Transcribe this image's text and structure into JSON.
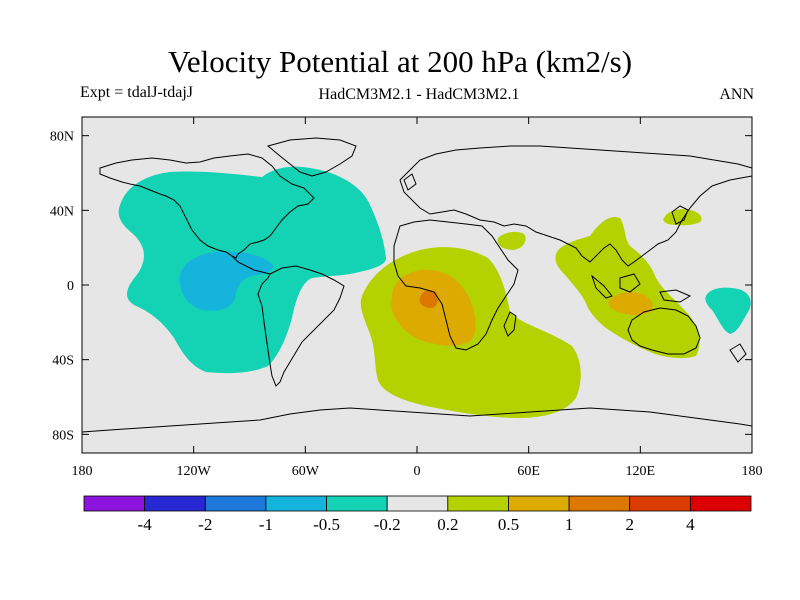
{
  "title": "Velocity Potential at 200 hPa (km2/s)",
  "experiment_label": "Expt = tdalJ-tdajJ",
  "model_label": "HadCM3M2.1 - HadCM3M2.1",
  "season_label": "ANN",
  "map": {
    "projection": "cylindrical equidistant",
    "lon_range": [
      -180,
      180
    ],
    "lat_range": [
      -90,
      90
    ],
    "lat_ticks": [
      {
        "lat": 80,
        "label": "80N"
      },
      {
        "lat": 40,
        "label": "40N"
      },
      {
        "lat": 0,
        "label": "0"
      },
      {
        "lat": -40,
        "label": "40S"
      },
      {
        "lat": -80,
        "label": "80S"
      }
    ],
    "lon_ticks": [
      {
        "lon": -180,
        "label": "180"
      },
      {
        "lon": -120,
        "label": "120W"
      },
      {
        "lon": -60,
        "label": "60W"
      },
      {
        "lon": 0,
        "label": "0"
      },
      {
        "lon": 60,
        "label": "60E"
      },
      {
        "lon": 120,
        "label": "120E"
      },
      {
        "lon": 180,
        "label": "180"
      }
    ],
    "background_color": "#e6e6e6"
  },
  "colorbar": {
    "colors": [
      "#8c14dc",
      "#2828d2",
      "#1e78dc",
      "#14b4dc",
      "#14d2b4",
      "#e6e6e6",
      "#b4d200",
      "#dcaa00",
      "#dc7800",
      "#dc3c00",
      "#dc0000"
    ],
    "labels": [
      "-4",
      "-2",
      "-1",
      "-0.5",
      "-0.2",
      "0.2",
      "0.5",
      "1",
      "2",
      "4"
    ]
  }
}
